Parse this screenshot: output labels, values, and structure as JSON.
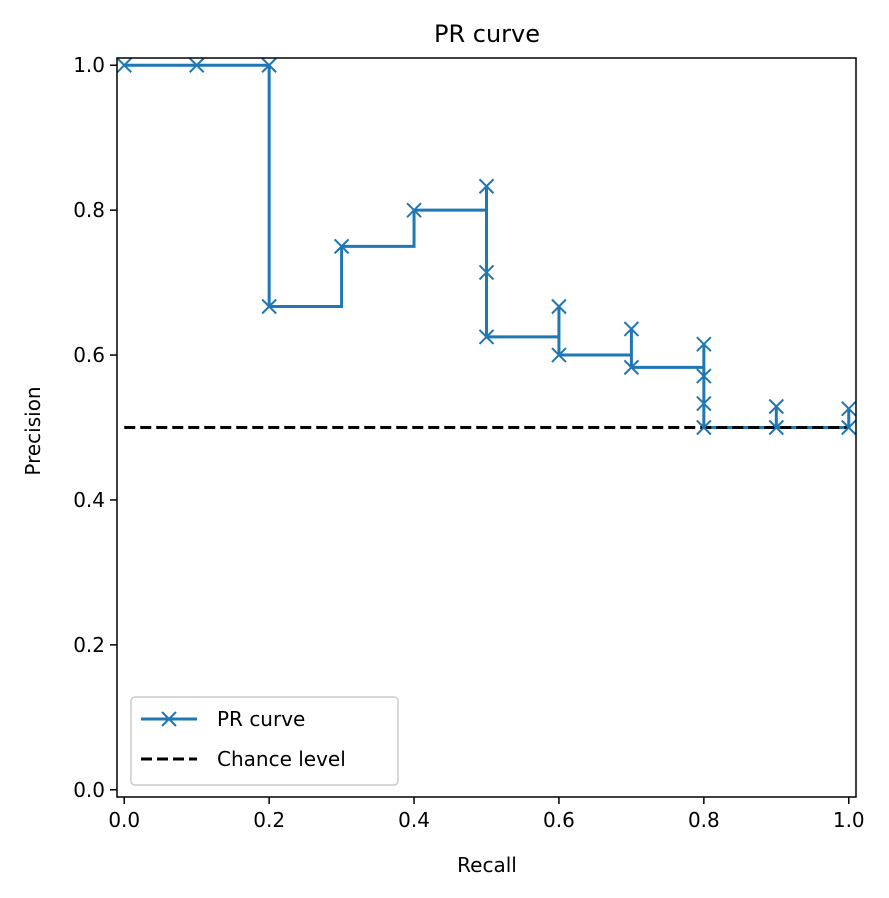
{
  "chart_data": {
    "type": "line",
    "title": "PR curve",
    "xlabel": "Recall",
    "ylabel": "Precision",
    "xlim": [
      -0.01,
      1.01
    ],
    "ylim": [
      -0.01,
      1.01
    ],
    "xticks": [
      0.0,
      0.2,
      0.4,
      0.6,
      0.8,
      1.0
    ],
    "xtick_labels": [
      "0.0",
      "0.2",
      "0.4",
      "0.6",
      "0.8",
      "1.0"
    ],
    "yticks": [
      0.0,
      0.2,
      0.4,
      0.6,
      0.8,
      1.0
    ],
    "ytick_labels": [
      "0.0",
      "0.2",
      "0.4",
      "0.6",
      "0.8",
      "1.0"
    ],
    "grid": false,
    "legend_position": "lower-left",
    "series": [
      {
        "name": "PR curve",
        "color": "#1f77b4",
        "line_style": "solid",
        "marker": "x",
        "drawstyle": "steps-post",
        "points": [
          [
            0.0,
            1.0
          ],
          [
            0.1,
            1.0
          ],
          [
            0.2,
            1.0
          ],
          [
            0.2,
            0.667
          ],
          [
            0.3,
            0.75
          ],
          [
            0.4,
            0.8
          ],
          [
            0.5,
            0.833
          ],
          [
            0.5,
            0.714
          ],
          [
            0.5,
            0.625
          ],
          [
            0.6,
            0.667
          ],
          [
            0.6,
            0.6
          ],
          [
            0.7,
            0.636
          ],
          [
            0.7,
            0.583
          ],
          [
            0.8,
            0.615
          ],
          [
            0.8,
            0.571
          ],
          [
            0.8,
            0.533
          ],
          [
            0.8,
            0.5
          ],
          [
            0.9,
            0.529
          ],
          [
            0.9,
            0.5
          ],
          [
            1.0,
            0.526
          ],
          [
            1.0,
            0.5
          ]
        ]
      },
      {
        "name": "Chance level",
        "color": "#000000",
        "line_style": "dashed",
        "marker": "none",
        "points": [
          [
            0.0,
            0.5
          ],
          [
            1.0,
            0.5
          ]
        ]
      }
    ]
  }
}
